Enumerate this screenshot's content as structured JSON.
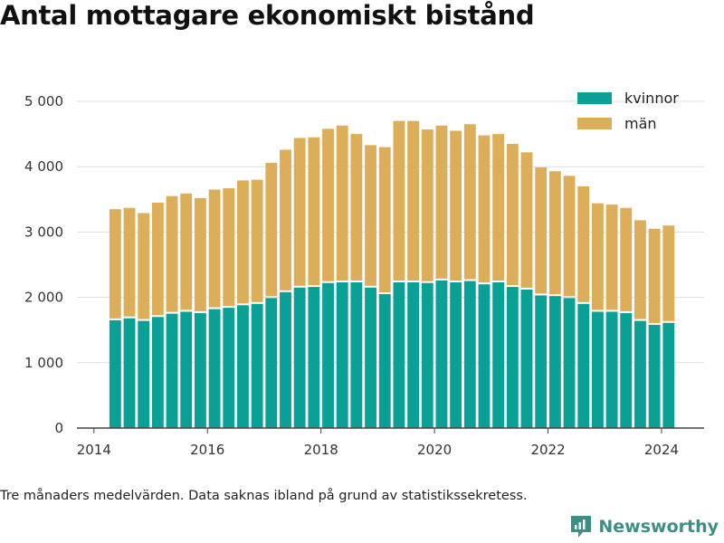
{
  "title": "Antal mottagare ekonomiskt bistånd",
  "footnote": "Tre månaders medelvärden. Data saknas ibland på grund av statistikssekretess.",
  "brand": {
    "name": "Newsworthy",
    "icon": "newsworthy-logo-icon",
    "color": "#3b8f87"
  },
  "chart_data": {
    "type": "bar",
    "stacked": true,
    "x_start": 2014.375,
    "x_step": 0.25,
    "xlim": [
      2013.7,
      2024.75
    ],
    "x_ticks": [
      2014,
      2016,
      2018,
      2020,
      2022,
      2024
    ],
    "x_tick_labels": [
      "2014",
      "2016",
      "2018",
      "2020",
      "2022",
      "2024"
    ],
    "ylim": [
      0,
      5000
    ],
    "y_ticks": [
      0,
      1000,
      2000,
      3000,
      4000,
      5000
    ],
    "y_tick_labels": [
      "0",
      "1 000",
      "2 000",
      "3 000",
      "4 000",
      "5 000"
    ],
    "grid": true,
    "legend_position": "top-right",
    "series": [
      {
        "name": "kvinnor",
        "color": "#0aa096",
        "values": [
          1650,
          1680,
          1640,
          1700,
          1750,
          1780,
          1760,
          1820,
          1840,
          1880,
          1900,
          1990,
          2080,
          2150,
          2160,
          2220,
          2230,
          2230,
          2150,
          2050,
          2230,
          2230,
          2220,
          2260,
          2230,
          2250,
          2200,
          2230,
          2160,
          2120,
          2030,
          2020,
          1990,
          1900,
          1780,
          1780,
          1760,
          1640,
          1580,
          1610
        ]
      },
      {
        "name": "män",
        "color": "#dcae5a",
        "values": [
          1700,
          1690,
          1650,
          1750,
          1800,
          1810,
          1760,
          1830,
          1830,
          1910,
          1900,
          2070,
          2180,
          2290,
          2290,
          2360,
          2400,
          2270,
          2180,
          2250,
          2470,
          2470,
          2350,
          2370,
          2320,
          2400,
          2280,
          2270,
          2190,
          2100,
          1960,
          1910,
          1870,
          1800,
          1660,
          1640,
          1610,
          1540,
          1470,
          1490
        ]
      }
    ]
  }
}
